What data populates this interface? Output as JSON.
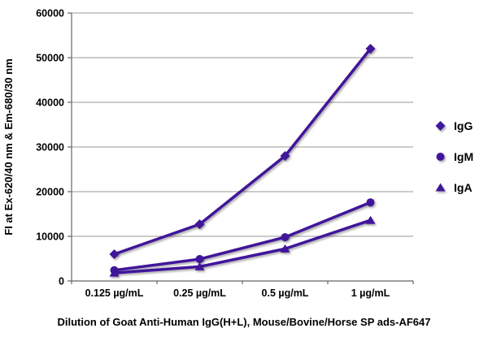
{
  "chart_data": {
    "type": "line",
    "title": "",
    "xlabel": "Dilution of Goat Anti-Human IgG(H+L), Mouse/Bovine/Horse SP ads-AF647",
    "ylabel": "FI at Ex-620/40 nm & Em-680/30 nm",
    "categories": [
      "0.125 µg/mL",
      "0.25 µg/mL",
      "0.5 µg/mL",
      "1 µg/mL"
    ],
    "ylim": [
      0,
      60000
    ],
    "yticks": [
      0,
      10000,
      20000,
      30000,
      40000,
      50000,
      60000
    ],
    "grid": true,
    "legend_position": "right",
    "series": [
      {
        "name": "IgG",
        "marker": "diamond",
        "values": [
          6000,
          12700,
          28000,
          52000
        ]
      },
      {
        "name": "IgM",
        "marker": "circle",
        "values": [
          2400,
          4900,
          9800,
          17600
        ]
      },
      {
        "name": "IgA",
        "marker": "triangle",
        "values": [
          1800,
          3200,
          7200,
          13600
        ]
      }
    ],
    "colors": {
      "series": "#41129A",
      "grid": "#999999",
      "axis": "#666666",
      "text": "#000000",
      "background": "#ffffff"
    }
  }
}
